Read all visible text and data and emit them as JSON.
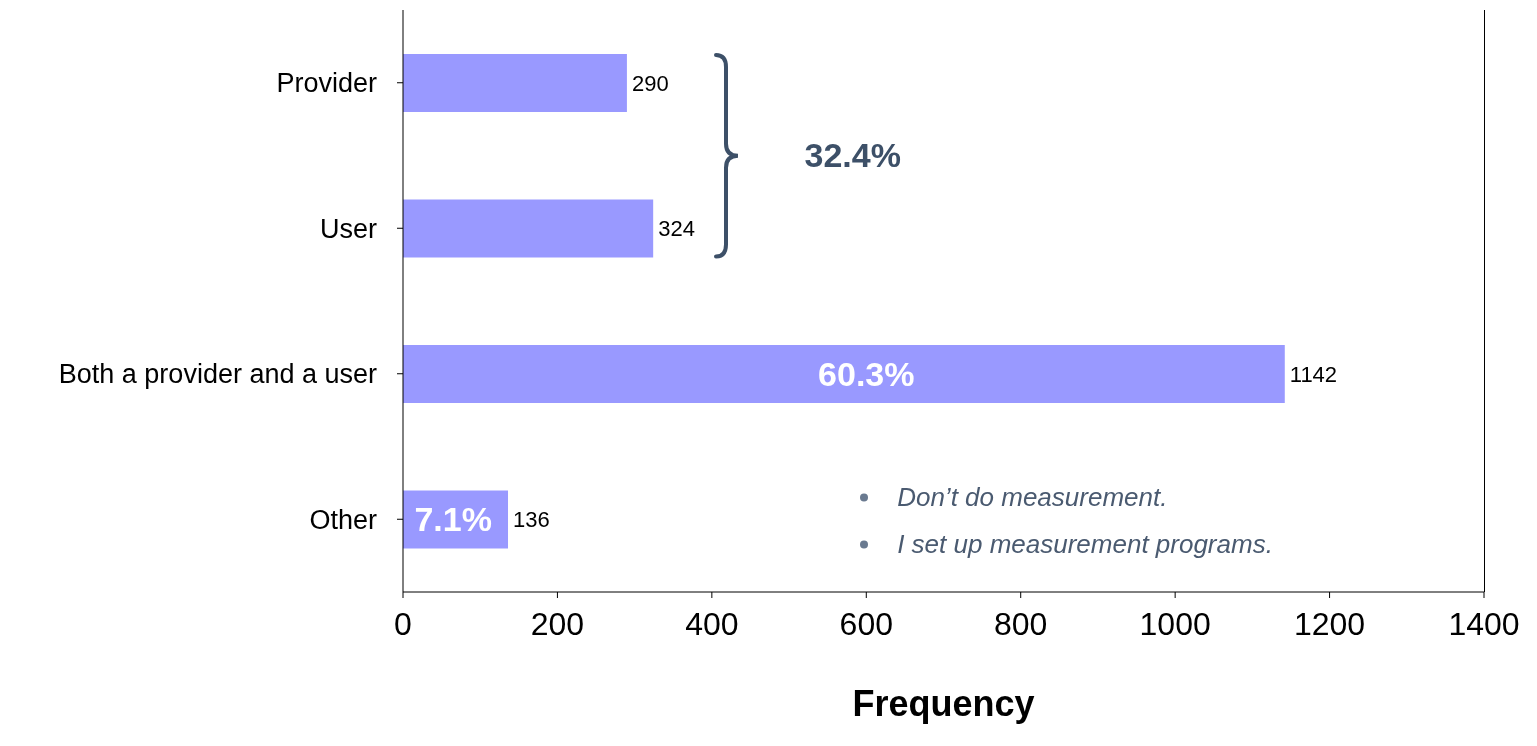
{
  "chart_data": {
    "type": "bar",
    "orientation": "horizontal",
    "categories": [
      "Provider",
      "User",
      "Both a provider and a user",
      "Other"
    ],
    "values": [
      290,
      324,
      1142,
      136
    ],
    "color": "#9999ff",
    "xlim": [
      0,
      1400
    ],
    "xticks": [
      0,
      200,
      400,
      600,
      800,
      1000,
      1200,
      1400
    ],
    "xlabel": "Frequency",
    "data_labels": true,
    "annotations": [
      "32.4%",
      "60.3%",
      "7.1%",
      "Don’t do measurement.",
      "I set up measurement programs."
    ]
  }
}
